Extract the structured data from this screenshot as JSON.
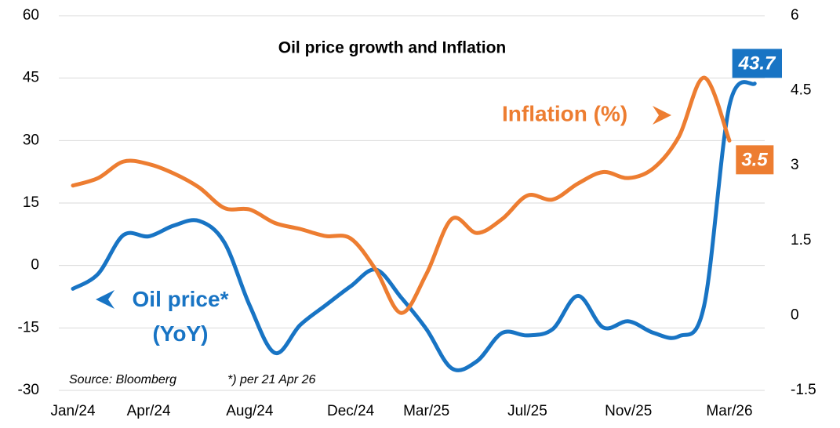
{
  "chart_data": {
    "type": "line",
    "title": "Oil price growth and Inflation",
    "source": "Source: Bloomberg",
    "footnote": "*) per 21 Apr 26",
    "categories": [
      "Jan/24",
      null,
      null,
      "Apr/24",
      null,
      null,
      null,
      "Aug/24",
      null,
      null,
      null,
      "Dec/24",
      null,
      null,
      "Mar/25",
      null,
      null,
      null,
      "Jul/25",
      null,
      null,
      null,
      "Nov/25",
      null,
      null,
      null,
      "Mar/26",
      null
    ],
    "series": [
      {
        "name": "Oil price* (YoY)",
        "color": "#1874c4",
        "axis": "y",
        "values": [
          -5.6,
          -2,
          7.3,
          7,
          9.6,
          10.7,
          5.5,
          -9.6,
          -21,
          -14.3,
          -9.6,
          -5,
          -1,
          -7.7,
          -15.3,
          -24.7,
          -23,
          -16.2,
          -16.8,
          -15.3,
          -7.3,
          -14.9,
          -13.4,
          -16.2,
          -17,
          -9.6,
          38.4,
          43.7
        ]
      },
      {
        "name": "Inflation (%)",
        "color": "#ed7d31",
        "axis": "y2",
        "values": [
          2.6,
          2.75,
          3.08,
          3.03,
          2.84,
          2.56,
          2.15,
          2.12,
          1.85,
          1.73,
          1.59,
          1.54,
          0.91,
          0.05,
          0.83,
          1.93,
          1.65,
          1.93,
          2.4,
          2.32,
          2.64,
          2.87,
          2.75,
          2.95,
          3.58,
          4.76,
          3.5,
          null
        ]
      }
    ],
    "ylim": [
      -30,
      60
    ],
    "yticks": [
      -30,
      -15,
      0,
      15,
      30,
      45,
      60
    ],
    "y2lim": [
      -1.5,
      6
    ],
    "y2ticks": [
      -1.5,
      0,
      1.5,
      3,
      4.5,
      6
    ],
    "grid": true
  }
}
